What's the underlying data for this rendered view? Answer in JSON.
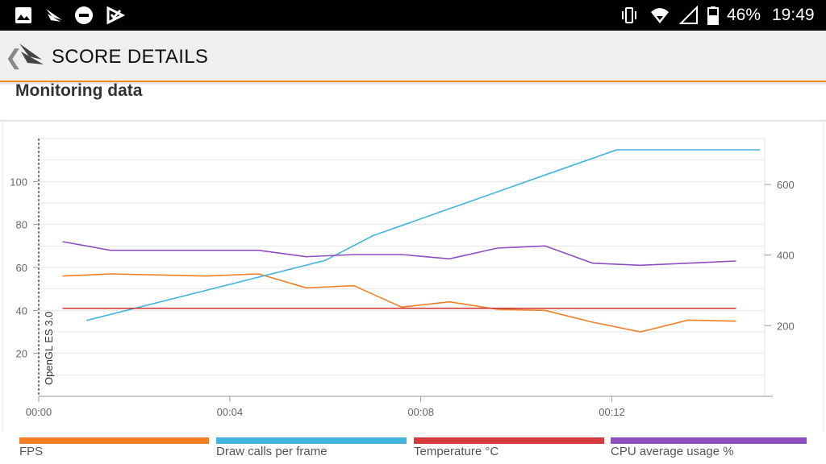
{
  "status_bar": {
    "battery": "46%",
    "time": "19:49",
    "icons": [
      "image-icon",
      "futuremark-icon",
      "do-not-disturb-icon",
      "check-tasks-icon",
      "vibrate-icon",
      "wifi-icon",
      "signal-icon",
      "battery-icon"
    ]
  },
  "app_bar": {
    "title": "SCORE DETAILS",
    "back_glyph": "❮"
  },
  "section": {
    "title": "Monitoring data"
  },
  "colors": {
    "fps": "#f07f24",
    "draw_calls": "#41b3dd",
    "temperature": "#d23b3b",
    "cpu": "#8d4fbf",
    "accent": "#f08a24"
  },
  "chart_data": {
    "type": "line",
    "title": "Monitoring data",
    "x_ticks": [
      "00:00",
      "00:04",
      "00:08",
      "00:12"
    ],
    "x_range_seconds": [
      0,
      15.2
    ],
    "left_axis": {
      "ticks": [
        20,
        40,
        60,
        80,
        100
      ],
      "range": [
        0,
        120
      ]
    },
    "right_axis": {
      "ticks": [
        200,
        400,
        600
      ],
      "range": [
        0,
        730
      ]
    },
    "annotation": {
      "label": "OpenGL ES 3.0",
      "x": 0
    },
    "series": [
      {
        "name": "FPS",
        "axis": "left",
        "color": "#f07f24",
        "points": [
          [
            0.5,
            56
          ],
          [
            1.5,
            57
          ],
          [
            2.5,
            56.5
          ],
          [
            3.5,
            56
          ],
          [
            4.6,
            57
          ],
          [
            5.6,
            50.5
          ],
          [
            6.6,
            51.5
          ],
          [
            7.6,
            41.5
          ],
          [
            8.6,
            44
          ],
          [
            9.6,
            40.5
          ],
          [
            10.6,
            40
          ],
          [
            11.6,
            34.5
          ],
          [
            12.6,
            30
          ],
          [
            13.6,
            35.5
          ],
          [
            14.6,
            35
          ]
        ]
      },
      {
        "name": "Draw calls per frame",
        "axis": "right",
        "color": "#41b3dd",
        "points": [
          [
            1,
            215
          ],
          [
            6,
            385
          ],
          [
            7,
            455
          ],
          [
            12.1,
            698
          ],
          [
            15.1,
            698
          ]
        ]
      },
      {
        "name": "Temperature °C",
        "axis": "left",
        "color": "#d23b3b",
        "points": [
          [
            0.5,
            41
          ],
          [
            14.6,
            41
          ]
        ]
      },
      {
        "name": "CPU average usage %",
        "axis": "left",
        "color": "#8d4fbf",
        "points": [
          [
            0.5,
            72
          ],
          [
            1.5,
            68
          ],
          [
            4.6,
            68
          ],
          [
            5.6,
            65
          ],
          [
            6.6,
            66
          ],
          [
            7.6,
            66
          ],
          [
            8.6,
            64
          ],
          [
            9.6,
            69
          ],
          [
            10.6,
            70
          ],
          [
            11.6,
            62
          ],
          [
            12.6,
            61
          ],
          [
            13.6,
            62
          ],
          [
            14.6,
            63
          ]
        ]
      }
    ]
  },
  "legend": [
    {
      "label": "FPS",
      "color": "#f07f24"
    },
    {
      "label": "Draw calls per frame",
      "color": "#41b3dd"
    },
    {
      "label": "Temperature °C",
      "color": "#d23b3b"
    },
    {
      "label": "CPU average usage %",
      "color": "#8d4fbf"
    }
  ]
}
